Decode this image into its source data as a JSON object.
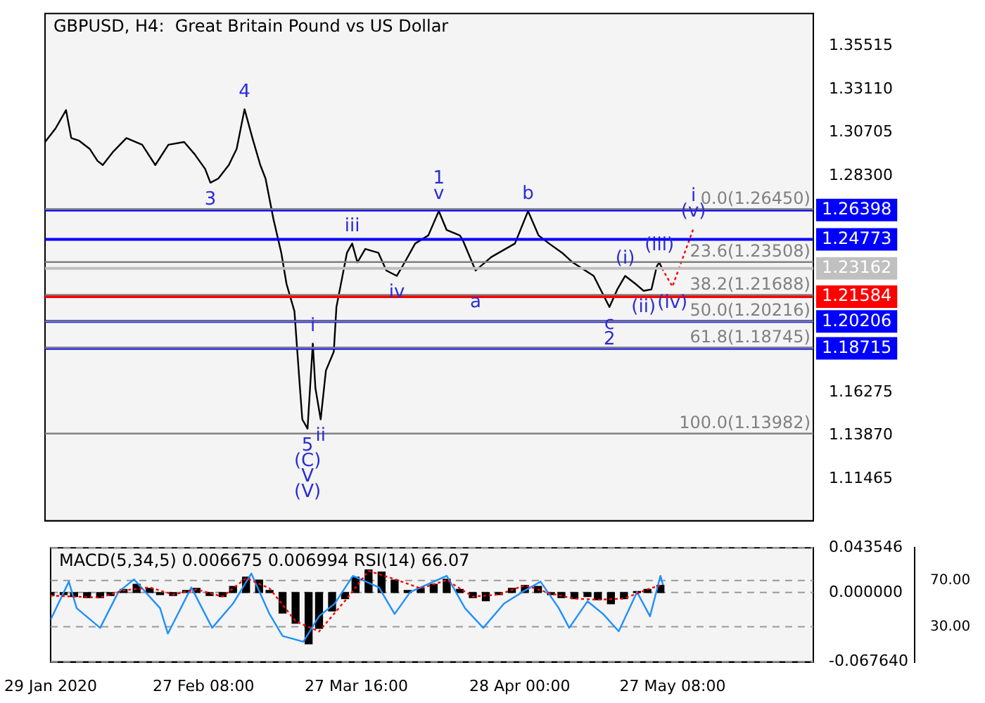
{
  "chart_data": [
    {
      "type": "line",
      "title": "GBPUSD, H4:  Great Britain Pound vs US Dollar",
      "tick_labels": "y",
      "xlim": [
        "2020-01-29T00:00",
        "2020-06-23T08:00"
      ],
      "ylim": [
        1.09135,
        1.37319
      ],
      "yticks": [
        {
          "value": 1.35515,
          "label": "1.35515"
        },
        {
          "value": 1.3311,
          "label": "1.33110"
        },
        {
          "value": 1.30705,
          "label": "1.30705"
        },
        {
          "value": 1.283,
          "label": "1.28300"
        },
        {
          "value": 1.16275,
          "label": "1.16275"
        },
        {
          "value": 1.1387,
          "label": "1.13870"
        },
        {
          "value": 1.11465,
          "label": "1.11465"
        }
      ],
      "series": [
        {
          "color": "#000000",
          "x": [
            "2020-01-29T00:00",
            "2020-01-31T00:00",
            "2020-02-02T00:00",
            "2020-02-03T00:00",
            "2020-02-04T12:00",
            "2020-02-06T12:00",
            "2020-02-08T00:00",
            "2020-02-09T00:00",
            "2020-02-11T00:00",
            "2020-02-13T12:00",
            "2020-02-16T12:00",
            "2020-02-19T00:00",
            "2020-02-21T12:00",
            "2020-02-24T12:00",
            "2020-02-26T12:00",
            "2020-02-28T12:00",
            "2020-02-29T12:00",
            "2020-03-02T00:00",
            "2020-03-04T00:00",
            "2020-03-05T12:00",
            "2020-03-07T00:00",
            "2020-03-08T12:00",
            "2020-03-10T00:00",
            "2020-03-11T00:00",
            "2020-03-12T12:00",
            "2020-03-14T00:00",
            "2020-03-15T00:00",
            "2020-03-16T12:00",
            "2020-03-17T12:00",
            "2020-03-18T00:00",
            "2020-03-19T00:00",
            "2020-03-20T00:00",
            "2020-03-20T12:00",
            "2020-03-21T12:00",
            "2020-03-22T12:00",
            "2020-03-24T00:00",
            "2020-03-24T12:00",
            "2020-03-25T12:00",
            "2020-03-26T12:00",
            "2020-03-27T12:00",
            "2020-03-28T12:00",
            "2020-03-30T00:00",
            "2020-04-01T12:00",
            "2020-04-03T00:00",
            "2020-04-05T00:00",
            "2020-04-06T12:00",
            "2020-04-08T12:00",
            "2020-04-11T00:00",
            "2020-04-13T00:00",
            "2020-04-14T12:00",
            "2020-04-17T00:00",
            "2020-04-17T12:00",
            "2020-04-20T00:00",
            "2020-04-23T00:00",
            "2020-04-27T12:00",
            "2020-04-30T00:00",
            "2020-05-02T00:00",
            "2020-05-04T00:00",
            "2020-05-06T12:00",
            "2020-05-08T12:00",
            "2020-05-12T12:00",
            "2020-05-15T12:00",
            "2020-05-17T00:00",
            "2020-05-18T12:00",
            "2020-05-20T12:00",
            "2020-05-22T00:00",
            "2020-05-23T12:00",
            "2020-05-24T12:00",
            "2020-05-25T00:00",
            "2020-05-25T12:00"
          ],
          "values": [
            1.3018,
            1.3093,
            1.3195,
            1.304,
            1.3025,
            1.298,
            1.2913,
            1.289,
            1.2965,
            1.304,
            1.3003,
            1.289,
            1.3003,
            1.3018,
            1.295,
            1.2868,
            1.2792,
            1.2815,
            1.289,
            1.298,
            1.32,
            1.304,
            1.289,
            1.2815,
            1.259,
            1.2402,
            1.2229,
            1.2078,
            1.1673,
            1.1477,
            1.1425,
            1.1898,
            1.165,
            1.1477,
            1.1748,
            1.1853,
            1.2101,
            1.2251,
            1.2402,
            1.2454,
            1.2349,
            1.2424,
            1.2402,
            1.2304,
            1.2274,
            1.2349,
            1.2454,
            1.2499,
            1.2634,
            1.2529,
            1.2499,
            1.2477,
            1.2304,
            1.2379,
            1.2454,
            1.2634,
            1.2499,
            1.2454,
            1.2402,
            1.2349,
            1.2274,
            1.2101,
            1.2199,
            1.2274,
            1.2229,
            1.2191,
            1.2199,
            1.2326,
            1.2349,
            1.2316
          ]
        },
        {
          "color": "#ff0000",
          "line_style": "dotted",
          "x": [
            "2020-05-25T12:00",
            "2020-05-27T12:00",
            "2020-05-31T12:00"
          ],
          "values": [
            1.2316,
            1.2215,
            1.2537
          ]
        }
      ],
      "ref_lines": [
        {
          "axis": "y",
          "value": 1.26398,
          "label": "1.26398",
          "color": "#0000ff"
        },
        {
          "axis": "y",
          "value": 1.24773,
          "label": "1.24773",
          "color": "#0000ff"
        },
        {
          "axis": "y",
          "value": 1.23162,
          "label": "1.23162",
          "color": "#c0c0c0"
        },
        {
          "axis": "y",
          "value": 1.21584,
          "label": "1.21584",
          "color": "#ff0000"
        },
        {
          "axis": "y",
          "value": 1.20206,
          "label": "1.20206",
          "color": "#0000ff"
        },
        {
          "axis": "y",
          "value": 1.18715,
          "label": "1.18715",
          "color": "#0000ff"
        },
        {
          "axis": "y",
          "value": 1.2645,
          "label": "0.0(1.26450)",
          "color": "#808080",
          "line_style": "solid"
        },
        {
          "axis": "y",
          "value": 1.23508,
          "label": "23.6(1.23508)",
          "color": "#808080",
          "line_style": "solid"
        },
        {
          "axis": "y",
          "value": 1.21688,
          "label": "38.2(1.21688)",
          "color": "#808080",
          "line_style": "solid"
        },
        {
          "axis": "y",
          "value": 1.20216,
          "label": "50.0(1.20216)",
          "color": "#808080",
          "line_style": "solid"
        },
        {
          "axis": "y",
          "value": 1.18745,
          "label": "61.8(1.18745)",
          "color": "#808080",
          "line_style": "solid"
        },
        {
          "axis": "y",
          "value": 1.13982,
          "label": "100.0(1.13982)",
          "color": "#808080",
          "line_style": "solid"
        }
      ],
      "annotations": [
        {
          "text": "4",
          "x": "2020-03-07T00:00",
          "y": 1.32
        },
        {
          "text": "3",
          "x": "2020-02-29T12:00",
          "y": 1.2792
        },
        {
          "text": "v",
          "x": "2020-04-13T00:00",
          "y": 1.2634
        },
        {
          "text": "1",
          "x": "2020-04-13T00:00",
          "y": 1.2634
        },
        {
          "text": "b",
          "x": "2020-04-30T00:00",
          "y": 1.2634
        },
        {
          "text": "(v)",
          "x": "2020-05-31T12:00",
          "y": 1.2537
        },
        {
          "text": "i",
          "x": "2020-05-31T12:00",
          "y": 1.2537
        },
        {
          "text": "iii",
          "x": "2020-03-27T12:00",
          "y": 1.2454
        },
        {
          "text": "i",
          "x": "2020-03-20T00:00",
          "y": 1.1898
        },
        {
          "text": "ii",
          "x": "2020-03-21T12:00",
          "y": 1.1477
        },
        {
          "text": "iv",
          "x": "2020-04-05T00:00",
          "y": 1.2274
        },
        {
          "text": "a",
          "x": "2020-04-20T00:00",
          "y": 1.2125
        },
        {
          "text": "c",
          "x": "2020-05-15T12:00",
          "y": 1.2101
        },
        {
          "text": "2",
          "x": "2020-05-15T12:00",
          "y": 1.2101
        },
        {
          "text": "(i)",
          "x": "2020-05-18T12:00",
          "y": 1.2274
        },
        {
          "text": "(iii)",
          "x": "2020-05-25T00:00",
          "y": 1.2349
        },
        {
          "text": "(ii)",
          "x": "2020-05-22T00:00",
          "y": 1.2191
        },
        {
          "text": "(iv)",
          "x": "2020-05-27T12:00",
          "y": 1.2215
        },
        {
          "text": "5",
          "x": "2020-03-19T00:00",
          "y": 1.1425
        },
        {
          "text": "(C)",
          "x": "2020-03-19T00:00",
          "y": 1.1425
        },
        {
          "text": "V",
          "x": "2020-03-19T00:00",
          "y": 1.1425
        },
        {
          "text": "(V)",
          "x": "2020-03-19T00:00",
          "y": 1.1425
        }
      ]
    },
    {
      "type": "line",
      "title": "MACD(5,34,5) 0.006675 0.006994 RSI(14) 66.07",
      "xlim": [
        "2020-01-29T00:00",
        "2020-06-23T08:00"
      ],
      "xticks": [
        {
          "value": "2020-01-29T00:00",
          "label": "29 Jan 2020"
        },
        {
          "value": "2020-02-27T08:00",
          "label": "27 Feb 08:00"
        },
        {
          "value": "2020-03-27T16:00",
          "label": "27 Mar 16:00"
        },
        {
          "value": "2020-04-28T00:00",
          "label": "28 Apr 00:00"
        },
        {
          "value": "2020-05-27T08:00",
          "label": "27 May 08:00"
        }
      ],
      "ylim": [
        -0.06764,
        0.043546
      ],
      "yticks": [
        {
          "value": 0.043546,
          "label": "0.043546"
        },
        {
          "value": 0,
          "label": "0.000000"
        },
        {
          "value": -0.06764,
          "label": "-0.067640"
        }
      ],
      "y2lim": [
        -0.5,
        98.3
      ],
      "y2ticks": [
        {
          "value": 70,
          "label": "70.00"
        },
        {
          "value": 30,
          "label": "30.00"
        }
      ],
      "grid": "y",
      "series": [
        {
          "type": "bar",
          "color": "#000000",
          "x": [
            "2020-01-29T00:00",
            "2020-01-31T12:00",
            "2020-02-02T12:00",
            "2020-02-05T00:00",
            "2020-02-07T12:00",
            "2020-02-09T12:00",
            "2020-02-12T00:00",
            "2020-02-14T12:00",
            "2020-02-17T00:00",
            "2020-02-19T00:00",
            "2020-02-21T12:00",
            "2020-02-24T00:00",
            "2020-02-26T00:00",
            "2020-02-28T12:00",
            "2020-03-02T00:00",
            "2020-03-04T00:00",
            "2020-03-06T12:00",
            "2020-03-09T00:00",
            "2020-03-11T00:00",
            "2020-03-13T12:00",
            "2020-03-16T00:00",
            "2020-03-18T12:00",
            "2020-03-20T12:00",
            "2020-03-23T00:00",
            "2020-03-25T12:00",
            "2020-03-27T12:00",
            "2020-03-30T00:00",
            "2020-04-01T12:00",
            "2020-04-04T00:00",
            "2020-04-06T12:00",
            "2020-04-09T00:00",
            "2020-04-11T12:00",
            "2020-04-14T00:00",
            "2020-04-16T12:00",
            "2020-04-19T00:00",
            "2020-04-21T12:00",
            "2020-04-24T00:00",
            "2020-04-26T12:00",
            "2020-04-29T00:00",
            "2020-05-01T12:00",
            "2020-05-04T00:00",
            "2020-05-06T00:00",
            "2020-05-08T12:00",
            "2020-05-11T00:00",
            "2020-05-13T00:00",
            "2020-05-15T12:00",
            "2020-05-18T00:00",
            "2020-05-20T12:00",
            "2020-05-22T12:00",
            "2020-05-25T00:00"
          ],
          "values": [
            -0.003,
            -0.002,
            -0.004,
            -0.005,
            -0.005,
            -0.003,
            0.003,
            0.008,
            0.004,
            -0.002,
            -0.003,
            0.002,
            0.004,
            -0.003,
            -0.004,
            0.006,
            0.015,
            0.012,
            0.002,
            -0.02,
            -0.03,
            -0.05,
            -0.035,
            -0.018,
            -0.006,
            0.015,
            0.022,
            0.02,
            0.012,
            0.002,
            0.004,
            0.008,
            0.013,
            0.003,
            -0.005,
            -0.008,
            -0.002,
            0.004,
            0.007,
            0.006,
            -0.002,
            -0.005,
            -0.006,
            -0.004,
            -0.007,
            -0.011,
            -0.006,
            0.001,
            0.003,
            0.007
          ]
        },
        {
          "type": "line",
          "color": "#ff0000",
          "line_style": "dotted",
          "x": [
            "2020-01-29T00:00",
            "2020-02-02T12:00",
            "2020-02-07T12:00",
            "2020-02-12T00:00",
            "2020-02-17T00:00",
            "2020-02-21T12:00",
            "2020-02-26T00:00",
            "2020-03-02T00:00",
            "2020-03-06T12:00",
            "2020-03-11T00:00",
            "2020-03-16T00:00",
            "2020-03-20T12:00",
            "2020-03-25T12:00",
            "2020-03-30T00:00",
            "2020-04-04T00:00",
            "2020-04-09T00:00",
            "2020-04-14T00:00",
            "2020-04-19T00:00",
            "2020-04-24T00:00",
            "2020-04-29T00:00",
            "2020-05-04T00:00",
            "2020-05-08T12:00",
            "2020-05-13T00:00",
            "2020-05-18T00:00",
            "2020-05-22T12:00",
            "2020-05-25T00:00"
          ],
          "values": [
            -0.003,
            -0.004,
            -0.005,
            0.002,
            0.005,
            -0.002,
            0.003,
            -0.004,
            0.014,
            0.004,
            -0.028,
            -0.038,
            -0.008,
            0.021,
            0.013,
            0.004,
            0.012,
            -0.004,
            -0.002,
            0.007,
            -0.001,
            -0.006,
            -0.007,
            -0.006,
            0.003,
            0.007
          ]
        },
        {
          "type": "line",
          "color": "#1e90ff",
          "axis": "y2",
          "x": [
            "2020-01-29T00:00",
            "2020-02-01T12:00",
            "2020-02-03T00:00",
            "2020-02-07T12:00",
            "2020-02-11T00:00",
            "2020-02-14T00:00",
            "2020-02-19T00:00",
            "2020-02-20T12:00",
            "2020-02-25T00:00",
            "2020-02-29T00:00",
            "2020-03-04T00:00",
            "2020-03-07T12:00",
            "2020-03-11T00:00",
            "2020-03-13T12:00",
            "2020-03-17T12:00",
            "2020-03-20T12:00",
            "2020-03-23T12:00",
            "2020-03-27T00:00",
            "2020-04-01T00:00",
            "2020-04-04T00:00",
            "2020-04-07T00:00",
            "2020-04-14T00:00",
            "2020-04-17T12:00",
            "2020-04-21T00:00",
            "2020-04-25T00:00",
            "2020-04-28T12:00",
            "2020-05-02T00:00",
            "2020-05-05T12:00",
            "2020-05-07T12:00",
            "2020-05-11T00:00",
            "2020-05-14T00:00",
            "2020-05-17T00:00",
            "2020-05-20T12:00",
            "2020-05-23T00:00",
            "2020-05-25T00:00",
            "2020-05-25T12:00"
          ],
          "values": [
            36,
            69,
            46,
            29,
            60,
            71,
            46,
            24,
            64,
            29,
            50,
            76,
            41,
            22,
            17,
            39,
            50,
            74,
            64,
            41,
            60,
            74,
            46,
            29,
            50,
            60,
            69,
            46,
            29,
            52,
            41,
            26,
            60,
            39,
            74,
            66
          ]
        }
      ]
    }
  ]
}
